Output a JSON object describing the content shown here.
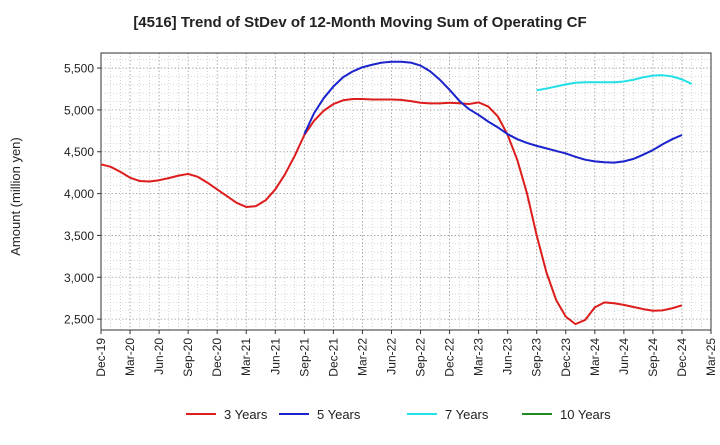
{
  "chart_data": {
    "type": "line",
    "title": "[4516]  Trend of StDev of 12-Month Moving Sum of Operating CF",
    "xlabel": "",
    "ylabel": "Amount (million yen)",
    "ylim": [
      2370,
      5680
    ],
    "y_ticks": [
      2500,
      3000,
      3500,
      4000,
      4500,
      5000,
      5500
    ],
    "y_tick_labels": [
      "2,500",
      "3,000",
      "3,500",
      "4,000",
      "4,500",
      "5,000",
      "5,500"
    ],
    "x_tick_labels": [
      "Dec-19",
      "Mar-20",
      "Jun-20",
      "Sep-20",
      "Dec-20",
      "Mar-21",
      "Jun-21",
      "Sep-21",
      "Dec-21",
      "Mar-22",
      "Jun-22",
      "Sep-22",
      "Dec-22",
      "Mar-23",
      "Jun-23",
      "Sep-23",
      "Dec-23",
      "Mar-24",
      "Jun-24",
      "Sep-24",
      "Dec-24",
      "Mar-25"
    ],
    "x_start": "Dec-19",
    "x_end": "Mar-25",
    "x_step": "month",
    "grid": true,
    "legend_position": "bottom",
    "series": [
      {
        "name": "3 Years",
        "color": "#dd1c1c",
        "start": "Dec-19",
        "values": [
          4350,
          4320,
          4260,
          4190,
          4150,
          4145,
          4160,
          4185,
          4215,
          4235,
          4200,
          4130,
          4050,
          3970,
          3890,
          3840,
          3850,
          3920,
          4050,
          4230,
          4450,
          4700,
          4870,
          4990,
          5070,
          5115,
          5130,
          5130,
          5125,
          5125,
          5125,
          5120,
          5105,
          5085,
          5078,
          5078,
          5085,
          5080,
          5070,
          5090,
          5040,
          4920,
          4700,
          4400,
          4000,
          3500,
          3060,
          2730,
          2530,
          2440,
          2490,
          2640,
          2700,
          2690,
          2670,
          2645,
          2620,
          2600,
          2605,
          2630,
          2665
        ]
      },
      {
        "name": "5 Years",
        "color": "#1a23cc",
        "start": "Sep-21",
        "values": [
          4710,
          4960,
          5140,
          5280,
          5390,
          5460,
          5510,
          5540,
          5565,
          5575,
          5575,
          5565,
          5530,
          5460,
          5360,
          5240,
          5110,
          5010,
          4940,
          4860,
          4790,
          4710,
          4650,
          4605,
          4570,
          4540,
          4510,
          4480,
          4440,
          4405,
          4385,
          4375,
          4370,
          4385,
          4415,
          4465,
          4520,
          4590,
          4650,
          4700
        ]
      },
      {
        "name": "7 Years",
        "color": "#21e0e6",
        "start": "Sep-23",
        "values": [
          5235,
          5255,
          5280,
          5305,
          5325,
          5330,
          5330,
          5330,
          5330,
          5340,
          5360,
          5390,
          5410,
          5415,
          5400,
          5365,
          5310
        ]
      },
      {
        "name": "10 Years",
        "color": "#1f8a1f",
        "start": "Dec-24",
        "values": []
      }
    ]
  }
}
